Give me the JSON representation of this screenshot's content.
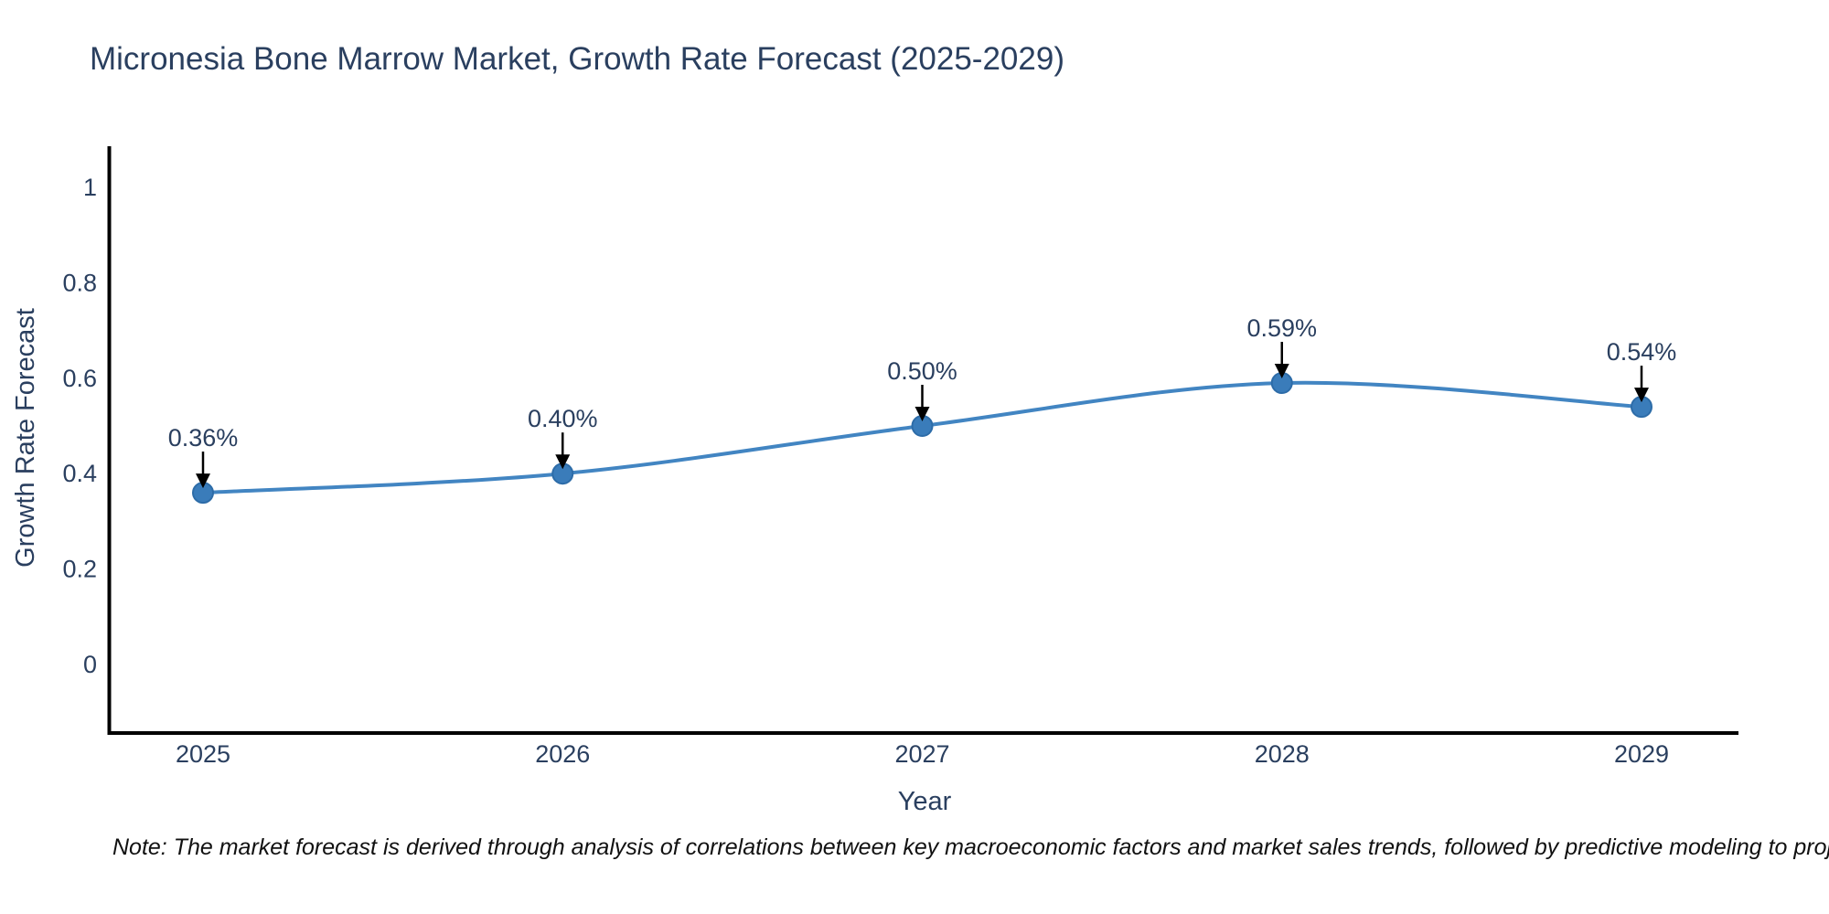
{
  "title": "Micronesia Bone Marrow Market, Growth Rate Forecast (2025-2029)",
  "note": "Note: The market forecast is derived through analysis of correlations between key macroeconomic factors and market sales trends, followed by predictive modeling to project future sales",
  "chart_data": {
    "type": "line",
    "title": "Micronesia Bone Marrow Market, Growth Rate Forecast (2025-2029)",
    "xlabel": "Year",
    "ylabel": "Growth Rate Forecast",
    "categories": [
      "2025",
      "2026",
      "2027",
      "2028",
      "2029"
    ],
    "series": [
      {
        "name": "Growth Rate Forecast",
        "values": [
          0.36,
          0.4,
          0.5,
          0.59,
          0.54
        ]
      }
    ],
    "point_labels": [
      "0.36%",
      "0.40%",
      "0.50%",
      "0.59%",
      "0.54%"
    ],
    "ytick_values": [
      0,
      0.2,
      0.4,
      0.6,
      0.8,
      1
    ],
    "ytick_labels": [
      "0",
      "0.2",
      "0.4",
      "0.6",
      "0.8",
      "1"
    ],
    "ylim": [
      -0.145,
      1.09
    ],
    "grid": false,
    "legend_position": "none",
    "line_shape": "spline",
    "annotations_have_arrows": true,
    "colors": {
      "line": "#4285c2",
      "marker": "#3a7cba",
      "marker_edge": "#2d6ca8",
      "arrow": "#000000",
      "axis": "#000000",
      "text": "#2a3f5f",
      "note_text": "#111111",
      "background": "#ffffff"
    }
  }
}
